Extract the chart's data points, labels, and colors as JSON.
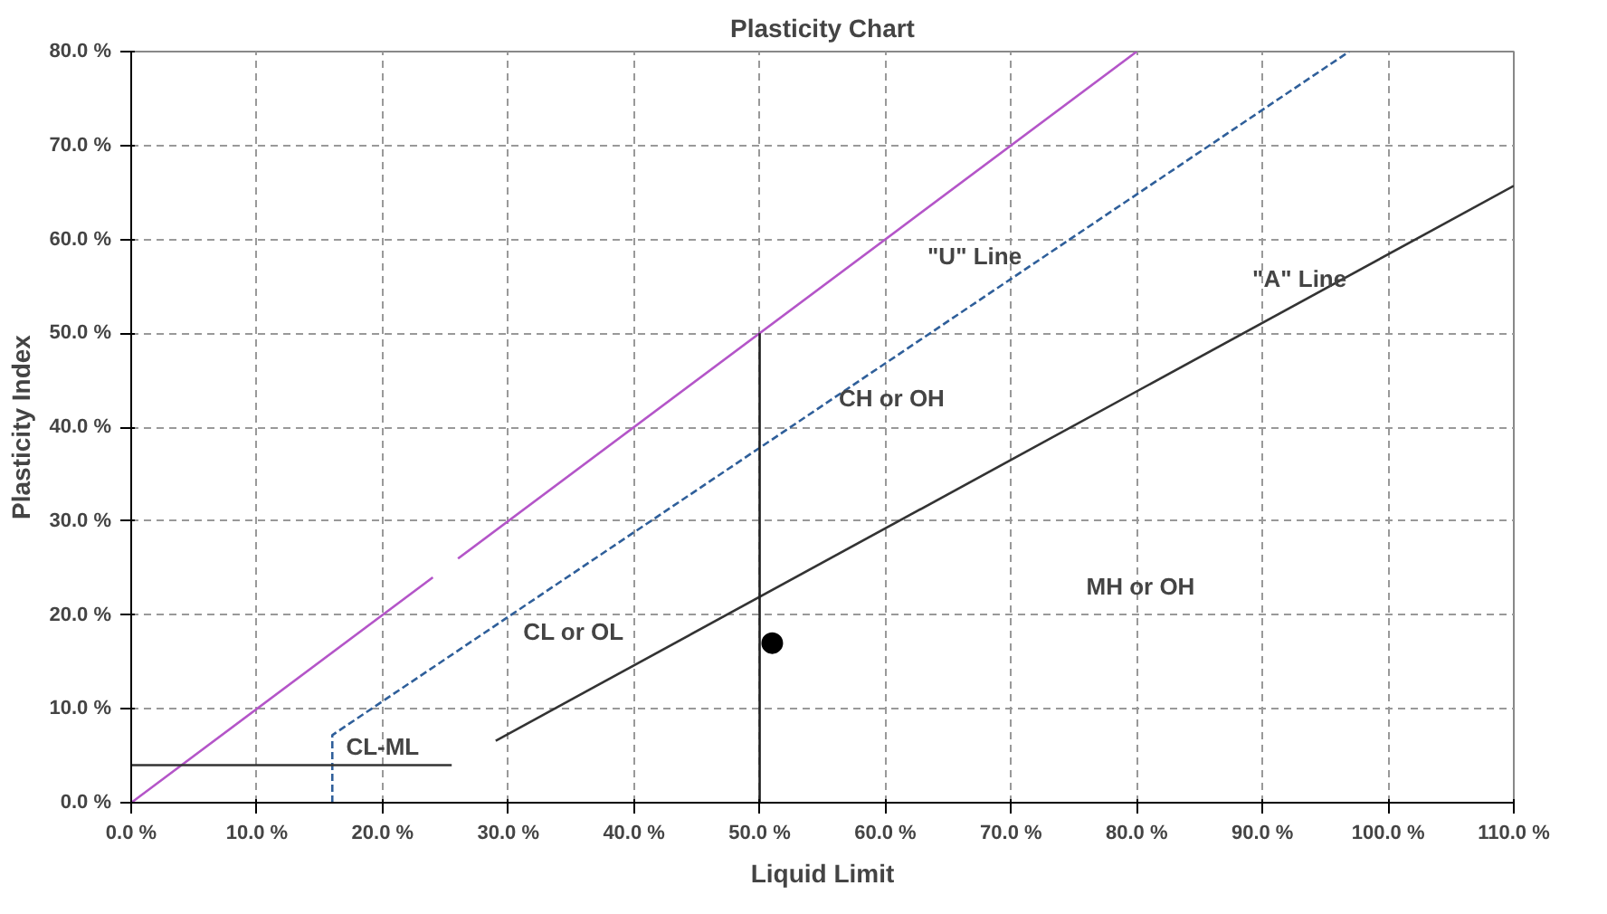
{
  "chart_data": {
    "type": "line",
    "title": "Plasticity Chart",
    "xlabel": "Liquid Limit",
    "ylabel": "Plasticity Index",
    "xlim": [
      0,
      110
    ],
    "ylim": [
      0,
      80
    ],
    "xticks": [
      {
        "value": 0,
        "label": "0.0 %"
      },
      {
        "value": 10,
        "label": "10.0 %"
      },
      {
        "value": 20,
        "label": "20.0 %"
      },
      {
        "value": 30,
        "label": "30.0 %"
      },
      {
        "value": 40,
        "label": "40.0 %"
      },
      {
        "value": 50,
        "label": "50.0 %"
      },
      {
        "value": 60,
        "label": "60.0 %"
      },
      {
        "value": 70,
        "label": "70.0 %"
      },
      {
        "value": 80,
        "label": "80.0 %"
      },
      {
        "value": 90,
        "label": "90.0 %"
      },
      {
        "value": 100,
        "label": "100.0 %"
      },
      {
        "value": 110,
        "label": "110.0 %"
      }
    ],
    "yticks": [
      {
        "value": 0,
        "label": "0.0 %"
      },
      {
        "value": 10,
        "label": "10.0 %"
      },
      {
        "value": 20,
        "label": "20.0 %"
      },
      {
        "value": 30,
        "label": "30.0 %"
      },
      {
        "value": 40,
        "label": "40.0 %"
      },
      {
        "value": 50,
        "label": "50.0 %"
      },
      {
        "value": 60,
        "label": "60.0 %"
      },
      {
        "value": 70,
        "label": "70.0 %"
      },
      {
        "value": 80,
        "label": "80.0 %"
      }
    ],
    "grid": true,
    "series": [
      {
        "color": "#b455c8",
        "x": [
          0,
          24
        ],
        "values": [
          0,
          24
        ],
        "line_style": "solid"
      },
      {
        "color": "#b455c8",
        "x": [
          26,
          80
        ],
        "values": [
          26,
          80
        ],
        "line_style": "solid"
      },
      {
        "color": "#2f5f9a",
        "x": [
          16,
          16,
          96.9
        ],
        "values": [
          0,
          7.2,
          80
        ],
        "line_style": "dashed"
      },
      {
        "color": "#333333",
        "x": [
          0,
          25.5
        ],
        "values": [
          4,
          4
        ],
        "line_style": "solid"
      },
      {
        "color": "#333333",
        "x": [
          29,
          110
        ],
        "values": [
          6.6,
          65.7
        ],
        "line_style": "solid"
      },
      {
        "color": "#222222",
        "x": [
          50,
          50
        ],
        "values": [
          0,
          50
        ],
        "line_style": "solid"
      },
      {
        "type": "scatter",
        "color": "#000000",
        "x": [
          51
        ],
        "values": [
          17
        ],
        "marker": "circle"
      }
    ],
    "annotations": [
      "\"U\" Line",
      "\"A\" Line",
      "CH or OH",
      "MH or OH",
      "CL or OL",
      {
        "text": "CL-ML",
        "x": 20,
        "y": 4.5
      }
    ]
  }
}
